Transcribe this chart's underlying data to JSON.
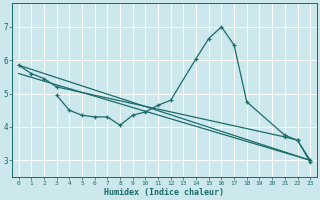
{
  "xlabel": "Humidex (Indice chaleur)",
  "background_color": "#cde8ec",
  "grid_color": "#ffffff",
  "line_color": "#1a6b6b",
  "xlim": [
    -0.5,
    23.5
  ],
  "ylim": [
    2.5,
    7.7
  ],
  "xticks": [
    0,
    1,
    2,
    3,
    4,
    5,
    6,
    7,
    8,
    9,
    10,
    11,
    12,
    13,
    14,
    15,
    16,
    17,
    18,
    19,
    20,
    21,
    22,
    23
  ],
  "yticks": [
    3,
    4,
    5,
    6,
    7
  ],
  "line1_x": [
    0,
    1,
    2,
    3,
    21,
    22,
    23
  ],
  "line1_y": [
    5.85,
    5.6,
    5.45,
    5.2,
    3.7,
    3.6,
    3.0
  ],
  "line2_x": [
    3,
    4,
    5,
    6,
    7,
    8,
    9,
    10,
    11,
    12,
    14,
    15,
    16,
    17,
    18,
    21,
    22,
    23
  ],
  "line2_y": [
    4.95,
    4.5,
    4.35,
    4.3,
    4.3,
    4.05,
    4.35,
    4.45,
    4.65,
    4.8,
    6.05,
    6.65,
    7.0,
    6.45,
    4.75,
    3.75,
    3.6,
    2.95
  ],
  "line3_x": [
    0,
    23
  ],
  "line3_y": [
    5.85,
    3.0
  ],
  "line4_x": [
    0,
    23
  ],
  "line4_y": [
    5.6,
    3.0
  ]
}
